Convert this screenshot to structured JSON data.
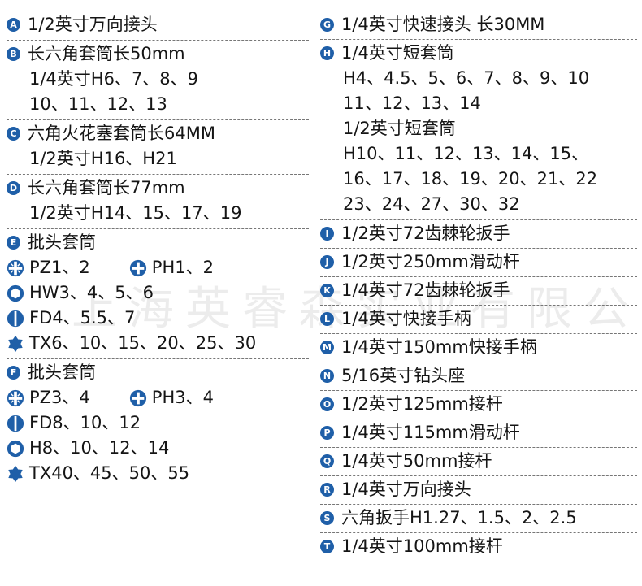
{
  "accent_color": "#1f5fa8",
  "watermark": "上海英睿森实业有限公司",
  "left": [
    {
      "badge": "A",
      "lines": [
        [
          {
            "text": "1/2英寸万向接头"
          }
        ]
      ]
    },
    {
      "badge": "B",
      "lines": [
        [
          {
            "text": "长六角套筒长50mm"
          }
        ],
        [
          {
            "text": "1/4英寸H6、7、8、9"
          }
        ],
        [
          {
            "text": "10、11、12、13"
          }
        ]
      ]
    },
    {
      "badge": "C",
      "lines": [
        [
          {
            "text": "六角火花塞套筒长64MM"
          }
        ],
        [
          {
            "text": "1/2英寸H16、H21"
          }
        ]
      ]
    },
    {
      "badge": "D",
      "lines": [
        [
          {
            "text": "长六角套筒长77mm"
          }
        ],
        [
          {
            "text": "1/2英寸H14、15、17、19"
          }
        ]
      ]
    },
    {
      "badge": "E",
      "lines": [
        [
          {
            "text": "批头套筒"
          }
        ],
        [
          {
            "icon": "pozidriv",
            "text": "PZ1、2"
          },
          {
            "icon": "phillips",
            "text": "PH1、2"
          }
        ],
        [
          {
            "icon": "hex",
            "text": "HW3、4、5、6"
          }
        ],
        [
          {
            "icon": "slotted",
            "text": "FD4、5.5、7"
          }
        ],
        [
          {
            "icon": "torx",
            "text": "TX6、10、15、20、25、30"
          }
        ]
      ]
    },
    {
      "badge": "F",
      "lines": [
        [
          {
            "text": "批头套筒"
          }
        ],
        [
          {
            "icon": "pozidriv",
            "text": "PZ3、4"
          },
          {
            "icon": "phillips",
            "text": "PH3、4"
          }
        ],
        [
          {
            "icon": "slotted",
            "text": "FD8、10、12"
          }
        ],
        [
          {
            "icon": "hex",
            "text": "H8、10、12、14"
          }
        ],
        [
          {
            "icon": "torx",
            "text": "TX40、45、50、55"
          }
        ]
      ]
    }
  ],
  "right": [
    {
      "badge": "G",
      "lines": [
        [
          {
            "text": "1/4英寸快速接头 长30MM"
          }
        ]
      ]
    },
    {
      "badge": "H",
      "lines": [
        [
          {
            "text": "1/4英寸短套筒"
          }
        ],
        [
          {
            "text": "H4、4.5、5、6、7、8、9、10"
          }
        ],
        [
          {
            "text": "11、12、13、14"
          }
        ],
        [
          {
            "text": "1/2英寸短套筒"
          }
        ],
        [
          {
            "text": "H10、11、12、13、14、15、"
          }
        ],
        [
          {
            "text": "16、17、18、19、20、21、22"
          }
        ],
        [
          {
            "text": "23、24、27、30、32"
          }
        ]
      ]
    },
    {
      "badge": "I",
      "lines": [
        [
          {
            "text": "1/2英寸72齿棘轮扳手"
          }
        ]
      ]
    },
    {
      "badge": "J",
      "lines": [
        [
          {
            "text": "1/2英寸250mm滑动杆"
          }
        ]
      ]
    },
    {
      "badge": "K",
      "lines": [
        [
          {
            "text": "1/4英寸72齿棘轮扳手"
          }
        ]
      ]
    },
    {
      "badge": "L",
      "lines": [
        [
          {
            "text": "1/4英寸快接手柄"
          }
        ]
      ]
    },
    {
      "badge": "M",
      "lines": [
        [
          {
            "text": "1/4英寸150mm快接手柄"
          }
        ]
      ]
    },
    {
      "badge": "N",
      "lines": [
        [
          {
            "text": "5/16英寸钻头座"
          }
        ]
      ]
    },
    {
      "badge": "O",
      "lines": [
        [
          {
            "text": "1/2英寸125mm接杆"
          }
        ]
      ]
    },
    {
      "badge": "P",
      "lines": [
        [
          {
            "text": "1/4英寸115mm滑动杆"
          }
        ]
      ]
    },
    {
      "badge": "Q",
      "lines": [
        [
          {
            "text": "1/4英寸50mm接杆"
          }
        ]
      ]
    },
    {
      "badge": "R",
      "lines": [
        [
          {
            "text": "1/4英寸万向接头"
          }
        ]
      ]
    },
    {
      "badge": "S",
      "lines": [
        [
          {
            "text": "六角扳手H1.27、1.5、2、2.5"
          }
        ]
      ]
    },
    {
      "badge": "T",
      "lines": [
        [
          {
            "text": "1/4英寸100mm接杆"
          }
        ]
      ]
    }
  ]
}
